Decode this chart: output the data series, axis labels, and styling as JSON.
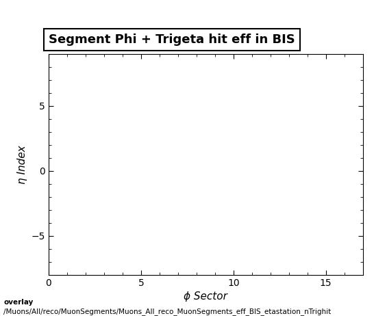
{
  "title": "Segment Phi + Trigeta hit eff in BIS",
  "xlabel": "ϕ Sector",
  "ylabel": "η Index",
  "xlim": [
    0,
    17
  ],
  "ylim": [
    -8,
    9
  ],
  "xticks": [
    0,
    5,
    10,
    15
  ],
  "yticks": [
    -5,
    0,
    5
  ],
  "background_color": "#ffffff",
  "plot_bg_color": "#ffffff",
  "caption_line1": "overlay",
  "caption_line2": "/Muons/All/reco/MuonSegments/Muons_All_reco_MuonSegments_eff_BIS_etastation_nTrighit",
  "title_fontsize": 13,
  "axis_label_fontsize": 11,
  "tick_fontsize": 10,
  "caption_fontsize": 7.5
}
